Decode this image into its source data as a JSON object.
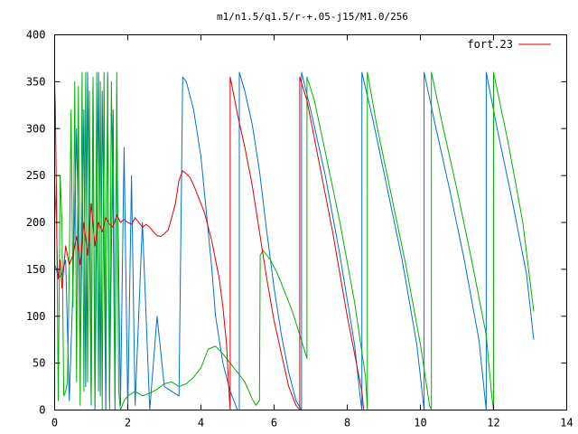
{
  "chart_data": {
    "type": "line",
    "title": "m1/n1.5/q1.5/r-+.05-j15/M1.0/256",
    "xlabel": "",
    "ylabel": "",
    "xlim": [
      0,
      14
    ],
    "ylim": [
      0,
      400
    ],
    "x_ticks": [
      0,
      2,
      4,
      6,
      8,
      10,
      12,
      14
    ],
    "y_ticks": [
      0,
      50,
      100,
      150,
      200,
      250,
      300,
      350,
      400
    ],
    "grid": false,
    "legend_position": "top-right",
    "legend": [
      "fort.23"
    ],
    "colors": {
      "red": "#dd0000",
      "green": "#00b000",
      "blue": "#0070d0"
    },
    "series": [
      {
        "name": "fort.23",
        "color": "#dd0000",
        "x": [
          0.0,
          0.02,
          0.04,
          0.06,
          0.08,
          0.1,
          0.15,
          0.2,
          0.3,
          0.4,
          0.5,
          0.6,
          0.7,
          0.8,
          0.9,
          1.0,
          1.1,
          1.2,
          1.3,
          1.4,
          1.5,
          1.6,
          1.7,
          1.8,
          1.9,
          2.0,
          2.1,
          2.2,
          2.3,
          2.4,
          2.5,
          2.6,
          2.7,
          2.8,
          2.9,
          3.0,
          3.1,
          3.2,
          3.3,
          3.4,
          3.5,
          3.6,
          3.7,
          3.8,
          3.9,
          4.0,
          4.1,
          4.2,
          4.3,
          4.4,
          4.5,
          4.6,
          4.7,
          4.75,
          4.8,
          4.8,
          4.9,
          5.0,
          5.2,
          5.4,
          5.6,
          5.8,
          6.0,
          6.2,
          6.4,
          6.6,
          6.7,
          6.7,
          6.9,
          7.2,
          7.6,
          8.0,
          8.4,
          8.45
        ],
        "values": [
          350,
          320,
          260,
          180,
          150,
          140,
          160,
          130,
          175,
          155,
          165,
          185,
          155,
          200,
          165,
          220,
          175,
          200,
          190,
          205,
          198,
          195,
          208,
          200,
          203,
          200,
          198,
          205,
          200,
          195,
          198,
          195,
          190,
          186,
          185,
          188,
          192,
          205,
          220,
          245,
          255,
          252,
          248,
          240,
          230,
          220,
          210,
          195,
          180,
          160,
          140,
          110,
          70,
          30,
          0,
          355,
          335,
          315,
          280,
          240,
          190,
          140,
          95,
          60,
          25,
          5,
          0,
          355,
          330,
          270,
          190,
          100,
          20,
          0
        ]
      },
      {
        "name": "",
        "color": "#00b000",
        "x": [
          0.0,
          0.05,
          0.1,
          0.15,
          0.2,
          0.25,
          0.3,
          0.35,
          0.4,
          0.45,
          0.5,
          0.55,
          0.6,
          0.65,
          0.7,
          0.75,
          0.8,
          0.85,
          0.9,
          0.95,
          1.0,
          1.05,
          1.1,
          1.15,
          1.2,
          1.25,
          1.3,
          1.35,
          1.4,
          1.45,
          1.5,
          1.55,
          1.6,
          1.65,
          1.7,
          1.75,
          1.8,
          1.9,
          2.0,
          2.2,
          2.4,
          2.6,
          2.8,
          3.0,
          3.2,
          3.4,
          3.6,
          3.8,
          4.0,
          4.2,
          4.4,
          4.6,
          4.8,
          5.0,
          5.2,
          5.4,
          5.5,
          5.6,
          5.62,
          5.7,
          5.9,
          6.1,
          6.3,
          6.5,
          6.7,
          6.9,
          6.9,
          7.1,
          7.4,
          7.8,
          8.2,
          8.5,
          8.55,
          8.55,
          8.8,
          9.2,
          9.6,
          10.0,
          10.25,
          10.3,
          10.3,
          10.6,
          11.0,
          11.4,
          11.8,
          11.95,
          12.0,
          12.0,
          12.4,
          12.8,
          13.1
        ],
        "values": [
          200,
          240,
          10,
          250,
          200,
          15,
          20,
          30,
          150,
          320,
          110,
          350,
          30,
          345,
          5,
          360,
          20,
          360,
          30,
          340,
          10,
          355,
          5,
          360,
          20,
          350,
          0,
          360,
          40,
          355,
          0,
          350,
          200,
          10,
          360,
          20,
          0,
          10,
          15,
          20,
          15,
          18,
          22,
          28,
          30,
          25,
          28,
          35,
          45,
          65,
          68,
          60,
          50,
          40,
          30,
          12,
          5,
          10,
          165,
          170,
          160,
          145,
          125,
          105,
          80,
          55,
          355,
          330,
          275,
          200,
          115,
          35,
          0,
          360,
          305,
          230,
          155,
          70,
          5,
          0,
          360,
          305,
          235,
          160,
          80,
          15,
          0,
          360,
          285,
          200,
          105
        ]
      },
      {
        "name": "",
        "color": "#0070d0",
        "x": [
          0.0,
          0.05,
          0.1,
          0.2,
          0.3,
          0.4,
          0.5,
          0.6,
          0.7,
          0.8,
          0.85,
          0.9,
          1.0,
          1.05,
          1.1,
          1.2,
          1.25,
          1.3,
          1.4,
          1.45,
          1.5,
          1.6,
          1.65,
          1.7,
          1.8,
          1.9,
          2.0,
          2.1,
          2.2,
          2.4,
          2.6,
          2.8,
          3.0,
          3.2,
          3.4,
          3.5,
          3.6,
          3.8,
          4.0,
          4.2,
          4.3,
          4.4,
          4.6,
          4.8,
          5.0,
          5.05,
          5.05,
          5.2,
          5.4,
          5.6,
          5.8,
          6.0,
          6.2,
          6.4,
          6.6,
          6.75,
          6.75,
          7.0,
          7.4,
          7.8,
          8.2,
          8.35,
          8.4,
          8.4,
          8.7,
          9.1,
          9.5,
          9.9,
          10.1,
          10.1,
          10.4,
          10.8,
          11.2,
          11.6,
          11.8,
          11.8,
          12.1,
          12.5,
          12.9,
          13.1
        ],
        "values": [
          155,
          150,
          140,
          145,
          160,
          10,
          130,
          300,
          50,
          320,
          25,
          360,
          5,
          350,
          0,
          360,
          15,
          340,
          0,
          360,
          10,
          320,
          0,
          300,
          5,
          280,
          0,
          250,
          5,
          200,
          0,
          100,
          25,
          20,
          15,
          355,
          350,
          320,
          270,
          190,
          150,
          100,
          50,
          20,
          0,
          0,
          360,
          340,
          305,
          255,
          190,
          130,
          80,
          40,
          10,
          0,
          360,
          320,
          250,
          165,
          70,
          15,
          0,
          360,
          310,
          235,
          160,
          70,
          0,
          360,
          305,
          235,
          160,
          75,
          0,
          360,
          300,
          225,
          145,
          75
        ]
      }
    ]
  }
}
